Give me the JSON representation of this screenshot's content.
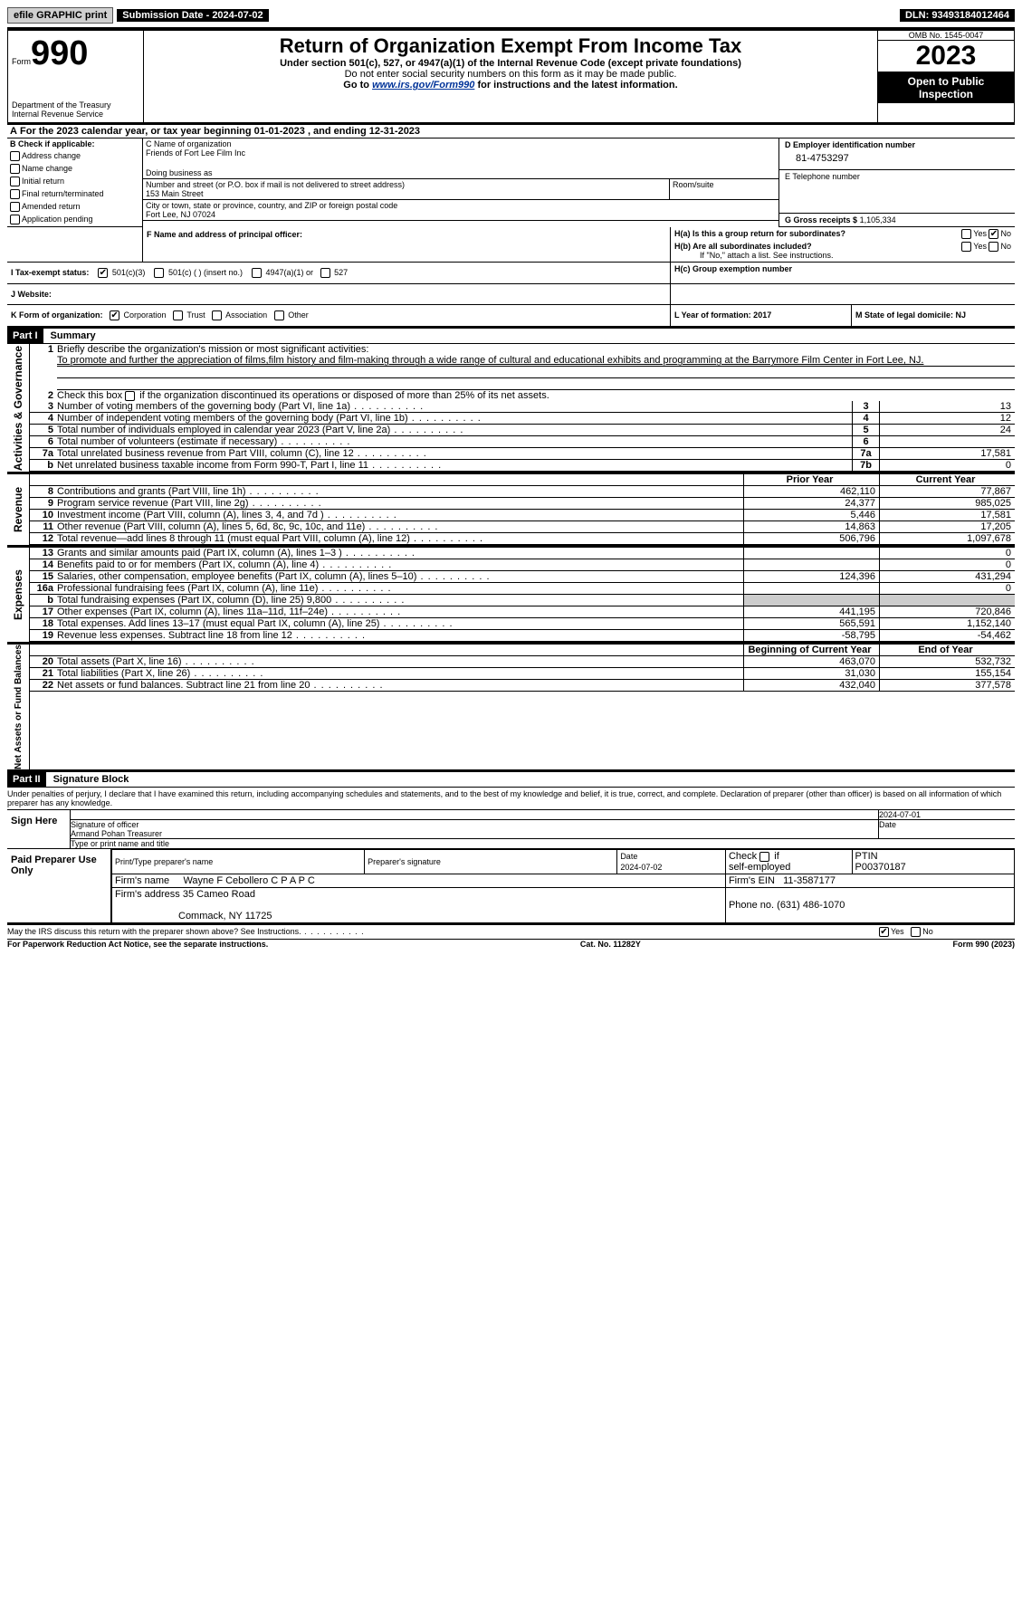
{
  "topbar": {
    "efile": "efile GRAPHIC print",
    "submission": "Submission Date - 2024-07-02",
    "dln_label": "DLN:",
    "dln": "93493184012464"
  },
  "header": {
    "form_label": "Form",
    "form_no": "990",
    "title": "Return of Organization Exempt From Income Tax",
    "sub1": "Under section 501(c), 527, or 4947(a)(1) of the Internal Revenue Code (except private foundations)",
    "sub2": "Do not enter social security numbers on this form as it may be made public.",
    "sub3_prefix": "Go to ",
    "sub3_link": "www.irs.gov/Form990",
    "sub3_suffix": " for instructions and the latest information.",
    "dept": "Department of the Treasury",
    "irs": "Internal Revenue Service",
    "omb_label": "OMB No. 1545-0047",
    "year": "2023",
    "open": "Open to Public Inspection"
  },
  "A": {
    "line": "For the 2023 calendar year, or tax year beginning 01-01-2023   , and ending 12-31-2023",
    "prefix": "A"
  },
  "B": {
    "label": "B Check if applicable:",
    "opts": [
      "Address change",
      "Name change",
      "Initial return",
      "Final return/terminated",
      "Amended return",
      "Application pending"
    ]
  },
  "C": {
    "name_label": "C Name of organization",
    "name": "Friends of Fort Lee Film Inc",
    "dba_label": "Doing business as",
    "street_label": "Number and street (or P.O. box if mail is not delivered to street address)",
    "street": "153 Main Street",
    "room_label": "Room/suite",
    "city_label": "City or town, state or province, country, and ZIP or foreign postal code",
    "city": "Fort Lee, NJ  07024"
  },
  "D": {
    "label": "D Employer identification number",
    "value": "81-4753297"
  },
  "E": {
    "label": "E Telephone number"
  },
  "G": {
    "label": "G Gross receipts $",
    "value": "1,105,334"
  },
  "F": {
    "label": "F  Name and address of principal officer:"
  },
  "H": {
    "a_label": "H(a)  Is this a group return for subordinates?",
    "b_label": "H(b)  Are all subordinates included?",
    "b_note": "If \"No,\" attach a list. See instructions.",
    "c_label": "H(c)  Group exemption number ",
    "yes": "Yes",
    "no": "No"
  },
  "I": {
    "label": "I  Tax-exempt status:",
    "o1": "501(c)(3)",
    "o2": "501(c) (  ) (insert no.)",
    "o3": "4947(a)(1) or",
    "o4": "527"
  },
  "J": {
    "label": "J  Website: "
  },
  "K": {
    "label": "K Form of organization:",
    "o1": "Corporation",
    "o2": "Trust",
    "o3": "Association",
    "o4": "Other"
  },
  "L": {
    "label": "L Year of formation: 2017"
  },
  "M": {
    "label": "M State of legal domicile: NJ"
  },
  "part1": {
    "hdr": "Part I",
    "title": "Summary",
    "sidebars": {
      "gov": "Activities & Governance",
      "rev": "Revenue",
      "exp": "Expenses",
      "net": "Net Assets or Fund Balances"
    }
  },
  "q1": {
    "num": "1",
    "label": "Briefly describe the organization's mission or most significant activities:",
    "text": "To promote and further the appreciation of films,film history and film-making through a wide range of cultural and educational exhibits and programming at the Barrymore Film Center in Fort Lee, NJ."
  },
  "q2": {
    "num": "2",
    "label": "Check this box ",
    "suffix": " if the organization discontinued its operations or disposed of more than 25% of its net assets."
  },
  "rows_gov": [
    {
      "n": "3",
      "d": "Number of voting members of the governing body (Part VI, line 1a)",
      "c": "3",
      "v": "13"
    },
    {
      "n": "4",
      "d": "Number of independent voting members of the governing body (Part VI, line 1b)",
      "c": "4",
      "v": "12"
    },
    {
      "n": "5",
      "d": "Total number of individuals employed in calendar year 2023 (Part V, line 2a)",
      "c": "5",
      "v": "24"
    },
    {
      "n": "6",
      "d": "Total number of volunteers (estimate if necessary)",
      "c": "6",
      "v": ""
    },
    {
      "n": "7a",
      "d": "Total unrelated business revenue from Part VIII, column (C), line 12",
      "c": "7a",
      "v": "17,581"
    },
    {
      "n": "b",
      "d": "Net unrelated business taxable income from Form 990-T, Part I, line 11",
      "c": "7b",
      "v": "0"
    }
  ],
  "hdr_years": {
    "prior": "Prior Year",
    "curr": "Current Year"
  },
  "rows_rev": [
    {
      "n": "8",
      "d": "Contributions and grants (Part VIII, line 1h)",
      "p": "462,110",
      "c": "77,867"
    },
    {
      "n": "9",
      "d": "Program service revenue (Part VIII, line 2g)",
      "p": "24,377",
      "c": "985,025"
    },
    {
      "n": "10",
      "d": "Investment income (Part VIII, column (A), lines 3, 4, and 7d )",
      "p": "5,446",
      "c": "17,581"
    },
    {
      "n": "11",
      "d": "Other revenue (Part VIII, column (A), lines 5, 6d, 8c, 9c, 10c, and 11e)",
      "p": "14,863",
      "c": "17,205"
    },
    {
      "n": "12",
      "d": "Total revenue—add lines 8 through 11 (must equal Part VIII, column (A), line 12)",
      "p": "506,796",
      "c": "1,097,678"
    }
  ],
  "rows_exp": [
    {
      "n": "13",
      "d": "Grants and similar amounts paid (Part IX, column (A), lines 1–3 )",
      "p": "",
      "c": "0"
    },
    {
      "n": "14",
      "d": "Benefits paid to or for members (Part IX, column (A), line 4)",
      "p": "",
      "c": "0"
    },
    {
      "n": "15",
      "d": "Salaries, other compensation, employee benefits (Part IX, column (A), lines 5–10)",
      "p": "124,396",
      "c": "431,294"
    },
    {
      "n": "16a",
      "d": "Professional fundraising fees (Part IX, column (A), line 11e)",
      "p": "",
      "c": "0"
    },
    {
      "n": "b",
      "d": "Total fundraising expenses (Part IX, column (D), line 25) 9,800",
      "p": "shade",
      "c": "shade"
    },
    {
      "n": "17",
      "d": "Other expenses (Part IX, column (A), lines 11a–11d, 11f–24e)",
      "p": "441,195",
      "c": "720,846"
    },
    {
      "n": "18",
      "d": "Total expenses. Add lines 13–17 (must equal Part IX, column (A), line 25)",
      "p": "565,591",
      "c": "1,152,140"
    },
    {
      "n": "19",
      "d": "Revenue less expenses. Subtract line 18 from line 12",
      "p": "-58,795",
      "c": "-54,462"
    }
  ],
  "hdr_net": {
    "beg": "Beginning of Current Year",
    "end": "End of Year"
  },
  "rows_net": [
    {
      "n": "20",
      "d": "Total assets (Part X, line 16)",
      "p": "463,070",
      "c": "532,732"
    },
    {
      "n": "21",
      "d": "Total liabilities (Part X, line 26)",
      "p": "31,030",
      "c": "155,154"
    },
    {
      "n": "22",
      "d": "Net assets or fund balances. Subtract line 21 from line 20",
      "p": "432,040",
      "c": "377,578"
    }
  ],
  "part2": {
    "hdr": "Part II",
    "title": "Signature Block",
    "decl": "Under penalties of perjury, I declare that I have examined this return, including accompanying schedules and statements, and to the best of my knowledge and belief, it is true, correct, and complete. Declaration of preparer (other than officer) is based on all information of which preparer has any knowledge."
  },
  "sign": {
    "here": "Sign Here",
    "sig_label": "Signature of officer",
    "name": "Armand Pohan  Treasurer",
    "type_label": "Type or print name and title",
    "date": "2024-07-01",
    "date_label": "Date"
  },
  "prep": {
    "label": "Paid Preparer Use Only",
    "name_label": "Print/Type preparer's name",
    "sig_label": "Preparer's signature",
    "date_label": "Date",
    "date": "2024-07-02",
    "check_label": "Check",
    "if": "if",
    "self": "self-employed",
    "ptin_label": "PTIN",
    "ptin": "P00370187",
    "firm_label": "Firm's name",
    "firm": "Wayne F Cebollero C P A P C",
    "ein_label": "Firm's EIN",
    "ein": "11-3587177",
    "addr_label": "Firm's address",
    "addr1": "35 Cameo Road",
    "addr2": "Commack, NY  11725",
    "phone_label": "Phone no.",
    "phone": "(631) 486-1070"
  },
  "footer": {
    "discuss": "May the IRS discuss this return with the preparer shown above? See Instructions.",
    "yes": "Yes",
    "no": "No",
    "pra": "For Paperwork Reduction Act Notice, see the separate instructions.",
    "cat": "Cat. No. 11282Y",
    "form": "Form 990 (2023)"
  },
  "style": {
    "background": "#ffffff",
    "text": "#000000",
    "link": "#003399",
    "shade": "#cccccc",
    "font_size_pt": 11
  }
}
